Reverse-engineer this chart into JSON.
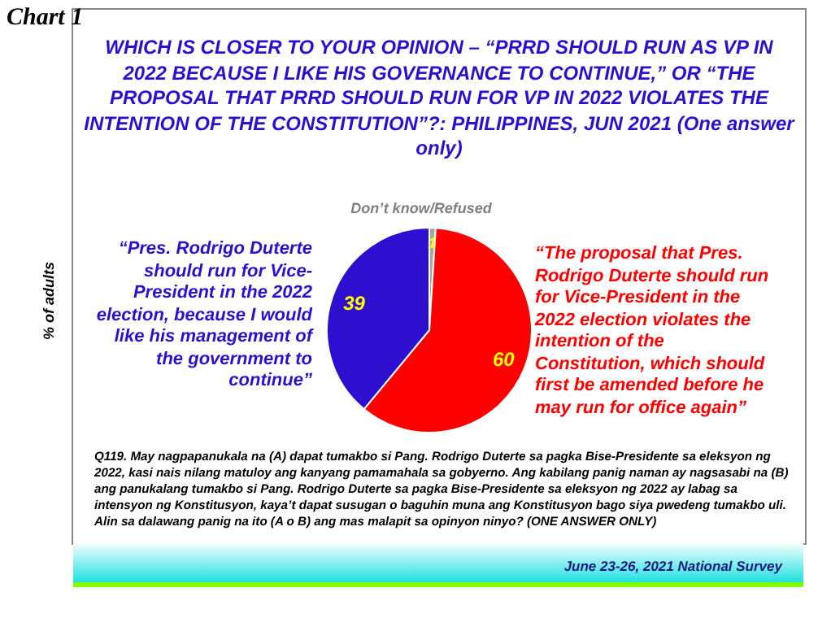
{
  "chart_data": {
    "type": "pie",
    "title": "WHICH IS CLOSER TO YOUR OPINION – “PRRD SHOULD RUN AS VP IN 2022 BECAUSE I LIKE HIS GOVERNANCE TO CONTINUE,” OR “THE PROPOSAL THAT PRRD SHOULD RUN FOR VP IN 2022 VIOLATES THE INTENTION OF THE CONSTITUTION”?: PHILIPPINES, JUN 2021 (One answer only)",
    "ylabel": "% of adults",
    "categories": [
      "Don’t know/Refused",
      "“The proposal that Pres. Rodrigo Duterte should run for Vice-President in the 2022 election violates the intention of the Constitution, which should first be amended before he may run for office again”",
      "“Pres. Rodrigo Duterte should run for Vice-President in the 2022 election, because I would like his management of the government to continue”"
    ],
    "values": [
      1,
      60,
      39
    ],
    "colors": [
      "#a6a6a6",
      "#ff0000",
      "#2e0fd0"
    ],
    "data_labels": true,
    "legend": false,
    "annotations": [
      "Chart 1",
      "Q119. May nagpapanukala na (A) dapat tumakbo si Pang. Rodrigo Duterte sa pagka Bise-Presidente sa eleksyon ng 2022, kasi nais nilang matuloy ang kanyang pamamahala sa gobyerno. Ang kabilang panig naman ay nagsasabi na (B) ang panukalang tumakbo si Pang. Rodrigo Duterte sa pagka Bise-Presidente sa eleksyon ng 2022 ay labag sa intensyon ng Konstitusyon, kaya’t dapat susugan o baguhin muna ang Konstitusyon bago siya pwedeng tumakbo uli. Alin sa dalawang panig na ito (A o B) ang mas malapit sa opinyon ninyo? (ONE ANSWER ONLY)",
      "June 23-26, 2021 National Survey"
    ]
  }
}
